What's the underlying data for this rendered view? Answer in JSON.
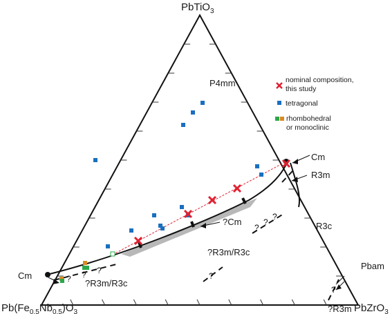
{
  "vertices": {
    "top": {
      "base": "PbTiO",
      "sub": "3"
    },
    "left": {
      "p1": "Pb(Fe",
      "s1": "0.5",
      "p2": "Nb",
      "s2": "0.5",
      "p3": ")O",
      "s3": "3"
    },
    "right": {
      "base": "PbZrO",
      "sub": "3"
    }
  },
  "regions": {
    "p4mm": "P4mm",
    "cm_right": "Cm",
    "r3m_right": "R3m",
    "r3c_right": "R3c",
    "cm_question": "?Cm",
    "r3m_r3c_center": "?R3m/R3c",
    "cm_left": "Cm",
    "r3m_r3c_lower": "?R3m/R3c",
    "pbam": "Pbam",
    "r3m_bottom": "?R3m"
  },
  "legend": {
    "nominal_line1": "nominal composition,",
    "nominal_line2": "this study",
    "tetragonal": "tetragonal",
    "rhombo_line1": "rhombohedral",
    "rhombo_line2": "or monoclinic"
  },
  "colors": {
    "nominal": "#e02030",
    "tetragonal": "#1a6fc0",
    "rhombo_green": "#2aa84a",
    "rhombo_orange": "#d98a22",
    "shade": "#b8b8b8",
    "line": "#111111"
  }
}
